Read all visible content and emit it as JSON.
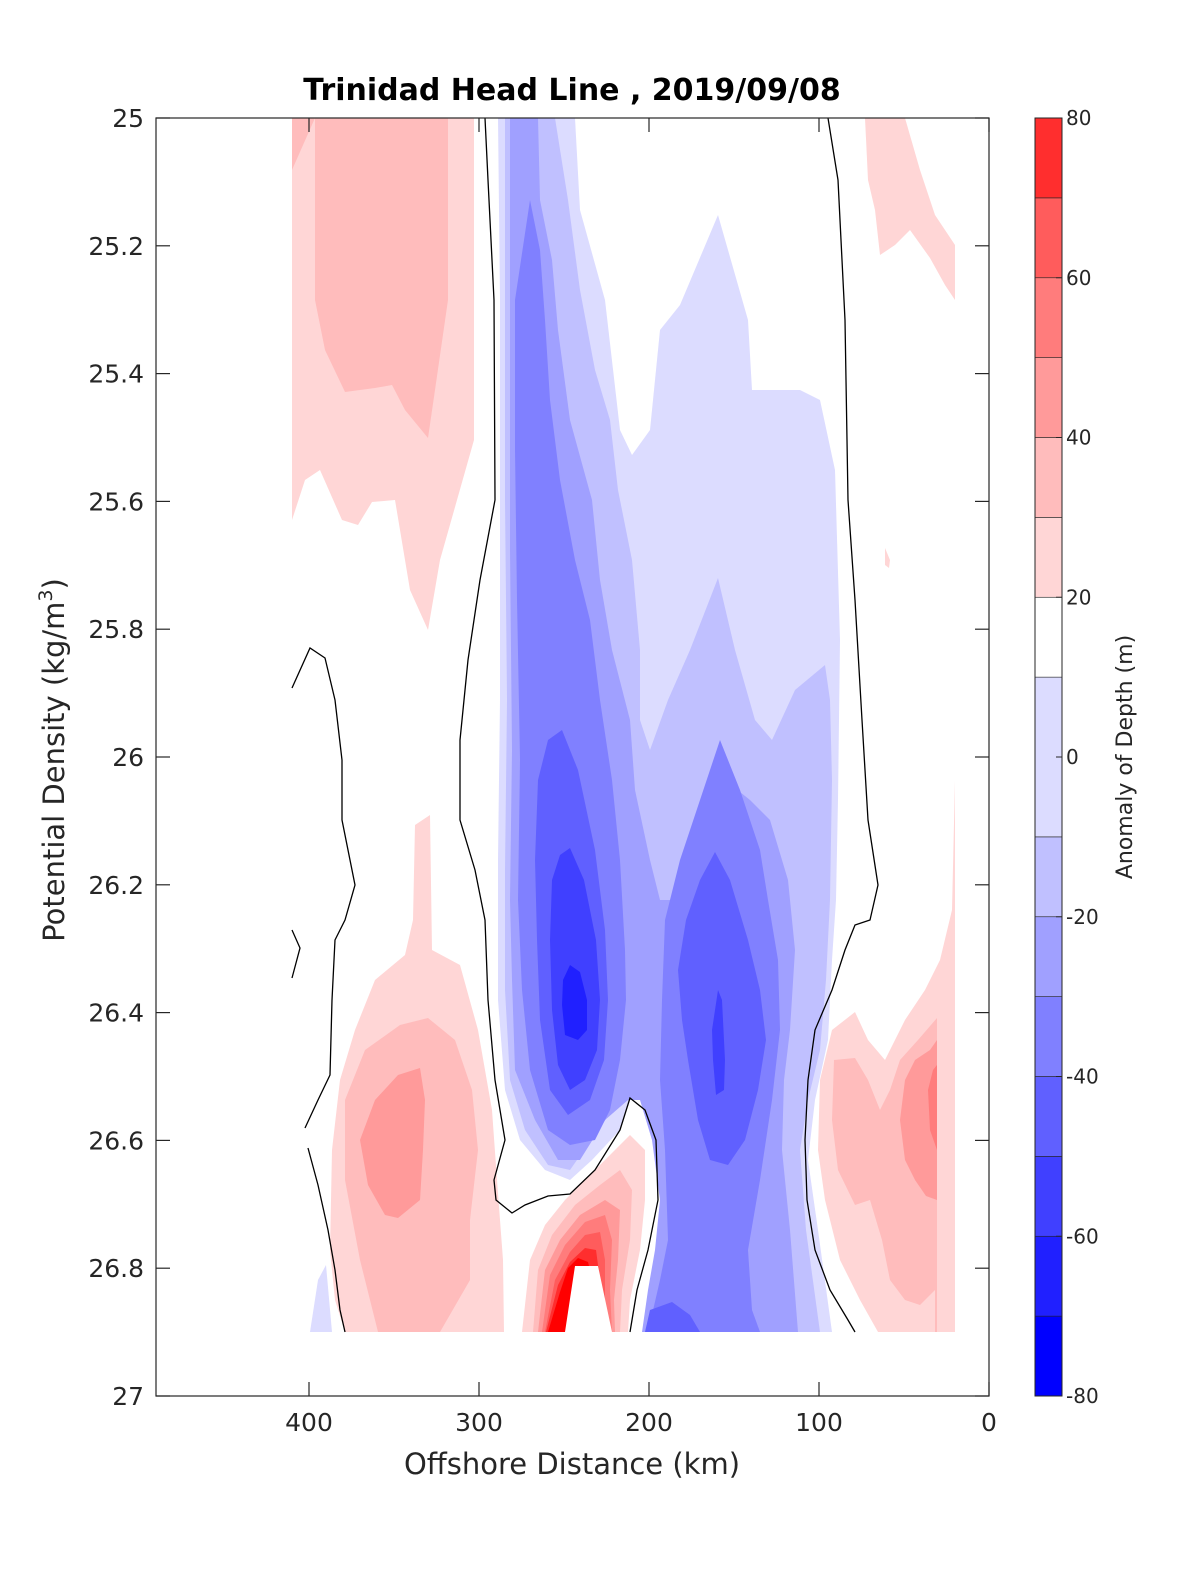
{
  "chart_data": {
    "type": "contourf",
    "title": "Trinidad Head Line , 2019/09/08",
    "xlabel": "Offshore Distance (km)",
    "ylabel_main": "Potential Density (kg/m",
    "ylabel_sup": "3",
    "ylabel_close": ")",
    "xlim": [
      490,
      0
    ],
    "x_reversed": true,
    "ylim": [
      25,
      27
    ],
    "y_reversed": true,
    "x_ticks": [
      "400",
      "300",
      "200",
      "100",
      "0"
    ],
    "x_tick_values": [
      400,
      300,
      200,
      100,
      0
    ],
    "y_ticks": [
      "25",
      "25.2",
      "25.4",
      "25.6",
      "25.8",
      "26",
      "26.2",
      "26.4",
      "26.6",
      "26.8",
      "27"
    ],
    "y_tick_values": [
      25,
      25.2,
      25.4,
      25.6,
      25.8,
      26,
      26.2,
      26.4,
      26.6,
      26.8,
      27
    ],
    "colorbar": {
      "label": "Anomaly of Depth (m)",
      "range": [
        -80,
        80
      ],
      "ticks": [
        "80",
        "60",
        "40",
        "20",
        "0",
        "-20",
        "-40",
        "-60",
        "-80"
      ],
      "tick_values": [
        80,
        60,
        40,
        20,
        0,
        -20,
        -40,
        -60,
        -80
      ],
      "levels": [
        -80,
        -70,
        -60,
        -50,
        -40,
        -30,
        -20,
        -10,
        10,
        20,
        30,
        40,
        50,
        60,
        70,
        80
      ],
      "colors": [
        "#0000ff",
        "#2020ff",
        "#4040ff",
        "#6060ff",
        "#8080ff",
        "#a0a0ff",
        "#c0c0ff",
        "#dcdcff",
        "#ffffff",
        "#ffd6d6",
        "#ffbcbc",
        "#ff9a9a",
        "#ff7c7c",
        "#ff5c5c",
        "#ff2e2e",
        "#ff0000"
      ]
    },
    "features": [
      {
        "name": "positive anomaly near 350 km, upper layers",
        "x_range": [
          410,
          300
        ],
        "y_range": [
          25,
          25.8
        ],
        "peak_value": 30
      },
      {
        "name": "positive anomaly near 340 km, deep layers",
        "x_range": [
          380,
          270
        ],
        "y_range": [
          26.3,
          26.9
        ],
        "peak_value": 40
      },
      {
        "name": "negative anomaly near 245 km",
        "x_range": [
          290,
          190
        ],
        "y_range": [
          25,
          26.7
        ],
        "peak_value": -60
      },
      {
        "name": "negative anomaly near 160 km",
        "x_range": [
          210,
          100
        ],
        "y_range": [
          25.2,
          26.9
        ],
        "peak_value": -50
      },
      {
        "name": "positive anomaly near 240 km, bottom",
        "x_range": [
          270,
          210
        ],
        "y_range": [
          26.6,
          26.9
        ],
        "peak_value": 70
      },
      {
        "name": "positive anomaly near 40 km, deep layers",
        "x_range": [
          90,
          20
        ],
        "y_range": [
          26.1,
          26.9
        ],
        "peak_value": 40
      },
      {
        "name": "positive anomaly near 50 km, top",
        "x_range": [
          75,
          20
        ],
        "y_range": [
          25,
          25.3
        ],
        "peak_value": 20
      }
    ]
  }
}
